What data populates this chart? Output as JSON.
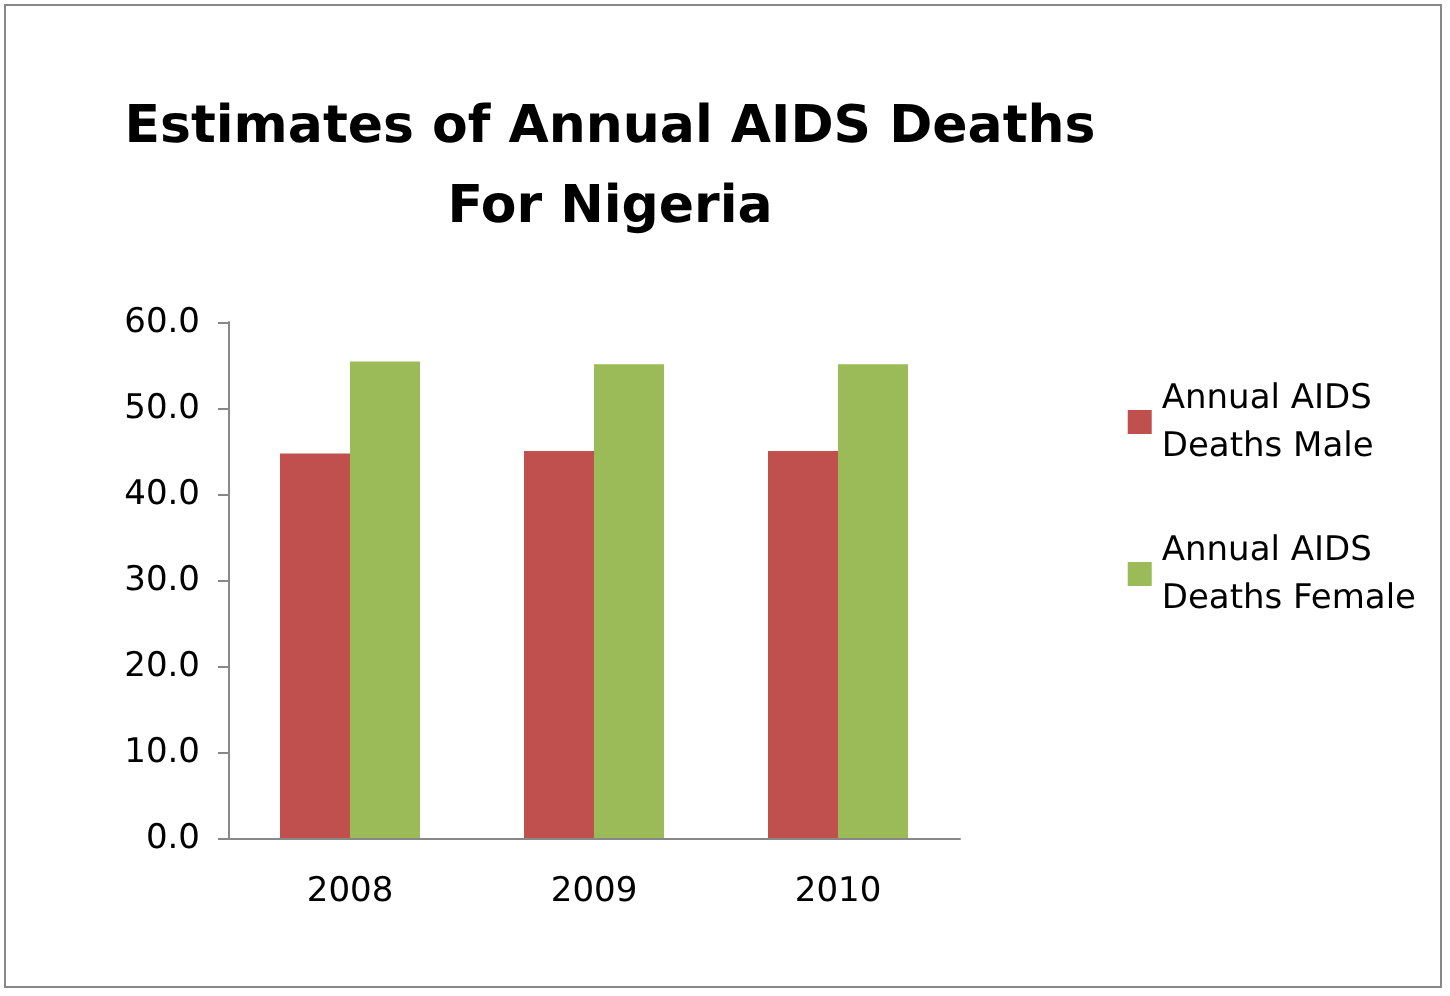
{
  "chart_data": {
    "type": "bar",
    "title": "Estimates of Annual AIDS Deaths\nFor Nigeria",
    "categories": [
      "2008",
      "2009",
      "2010"
    ],
    "series": [
      {
        "name": "Annual AIDS\nDeaths Male",
        "color": "#c0504d",
        "values": [
          44.7,
          45.0,
          45.0
        ]
      },
      {
        "name": "Annual AIDS\nDeaths Female",
        "color": "#9bbb59",
        "values": [
          55.4,
          55.1,
          55.1
        ]
      }
    ],
    "ylim": [
      0,
      60
    ],
    "yticks": [
      {
        "value": 0,
        "label": "0.0"
      },
      {
        "value": 10,
        "label": "10.0"
      },
      {
        "value": 20,
        "label": "20.0"
      },
      {
        "value": 30,
        "label": "30.0"
      },
      {
        "value": 40,
        "label": "40.0"
      },
      {
        "value": 50,
        "label": "50.0"
      },
      {
        "value": 60,
        "label": "60.0"
      }
    ],
    "grid": false,
    "legend": "right"
  }
}
